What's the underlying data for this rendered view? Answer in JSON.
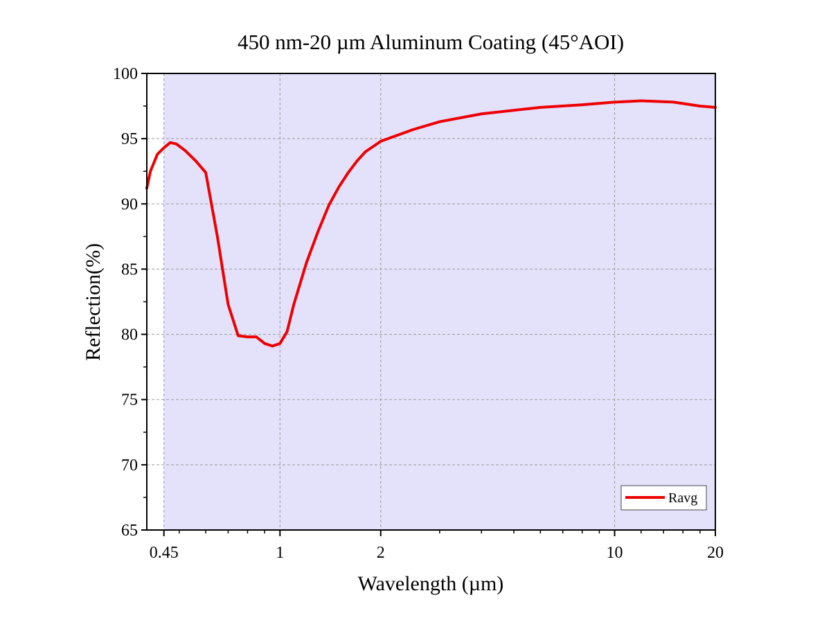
{
  "chart_data": {
    "type": "line",
    "title": "450 nm-20 µm Aluminum Coating (45°AOI)",
    "xlabel": "Wavelength (µm)",
    "ylabel": "Reflection(%)",
    "x_scale": "log",
    "xlim": [
      0.4,
      20
    ],
    "ylim": [
      65,
      100
    ],
    "x_ticks": [
      0.45,
      1,
      2,
      10,
      20
    ],
    "x_tick_labels": [
      "0.45",
      "1",
      "2",
      "10",
      "20"
    ],
    "y_ticks": [
      65,
      70,
      75,
      80,
      85,
      90,
      95,
      100
    ],
    "y_tick_labels": [
      "65",
      "70",
      "75",
      "80",
      "85",
      "90",
      "95",
      "100"
    ],
    "shaded_region": {
      "x": [
        0.45,
        20
      ],
      "color": "#e4e1fb"
    },
    "grid": true,
    "legend": {
      "position": "bottom-right"
    },
    "series": [
      {
        "name": "Ravg",
        "color": "#ee0000",
        "x": [
          0.4,
          0.41,
          0.43,
          0.45,
          0.47,
          0.49,
          0.52,
          0.56,
          0.6,
          0.65,
          0.7,
          0.75,
          0.8,
          0.85,
          0.9,
          0.95,
          1.0,
          1.05,
          1.1,
          1.2,
          1.3,
          1.4,
          1.5,
          1.6,
          1.7,
          1.8,
          1.9,
          2.0,
          2.5,
          3.0,
          4.0,
          6.0,
          8.0,
          10.0,
          12.0,
          15.0,
          18.0,
          20.0
        ],
        "y": [
          91.2,
          92.5,
          93.8,
          94.3,
          94.7,
          94.6,
          94.1,
          93.3,
          92.4,
          87.5,
          82.3,
          79.9,
          79.8,
          79.8,
          79.3,
          79.1,
          79.3,
          80.2,
          82.3,
          85.5,
          87.9,
          89.9,
          91.3,
          92.4,
          93.3,
          94.0,
          94.4,
          94.8,
          95.7,
          96.3,
          96.9,
          97.4,
          97.6,
          97.8,
          97.9,
          97.8,
          97.5,
          97.4
        ]
      }
    ]
  }
}
